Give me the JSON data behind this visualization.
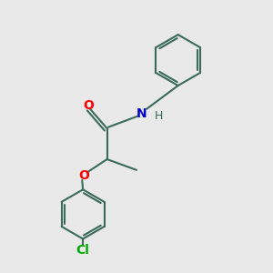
{
  "background_color": "#e9e9e9",
  "bond_color": "#3a6b5a",
  "O_color": "#ff0000",
  "N_color": "#0000cc",
  "Cl_color": "#00aa00",
  "H_color": "#3a6b5a",
  "line_width": 1.5,
  "figsize": [
    3.0,
    3.0
  ],
  "dpi": 100,
  "xlim": [
    0,
    10
  ],
  "ylim": [
    0,
    10
  ]
}
